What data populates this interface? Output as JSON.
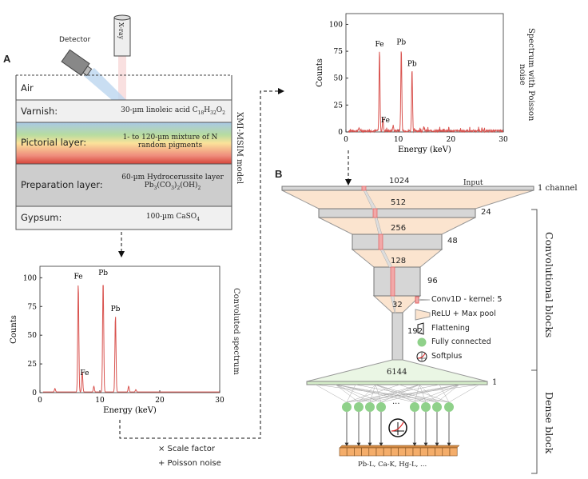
{
  "panel_a": {
    "label": "A",
    "detector_label": "Detector",
    "xray_label": "X-ray",
    "model_label": "XMI-MSIM model",
    "layers": [
      {
        "name": "Air",
        "desc": ""
      },
      {
        "name": "Varnish:",
        "desc": "30-µm linoleic acid C18H32O2"
      },
      {
        "name": "Pictorial layer:",
        "desc": "1- to 120-µm mixture of N random pigments"
      },
      {
        "name": "Preparation layer:",
        "desc": "60-µm Hydrocerussite layer Pb3(CO3)2(OH)2"
      },
      {
        "name": "Gypsum:",
        "desc": "100-µm CaSO4"
      }
    ],
    "convoluted_label": "Convoluted spectrum",
    "scale_factor": "× Scale factor",
    "poisson_noise": "+ Poisson noise",
    "noisy_label": "Spectrum with Poisson noise"
  },
  "chart_data": [
    {
      "type": "line",
      "title": "Convoluted spectrum",
      "xlabel": "Energy (keV)",
      "ylabel": "Counts",
      "xlim": [
        0,
        30
      ],
      "ylim": [
        0,
        110
      ],
      "xticks": [
        "0",
        "10",
        "20",
        "30"
      ],
      "yticks": [
        "0",
        "25",
        "50",
        "75",
        "100"
      ],
      "peaks": [
        {
          "energy": 2.5,
          "counts": 3,
          "label": ""
        },
        {
          "energy": 6.4,
          "counts": 95,
          "label": "Fe"
        },
        {
          "energy": 7.06,
          "counts": 18,
          "label": "Fe"
        },
        {
          "energy": 9.0,
          "counts": 5,
          "label": ""
        },
        {
          "energy": 10.55,
          "counts": 98,
          "label": "Pb"
        },
        {
          "energy": 12.6,
          "counts": 67,
          "label": "Pb"
        },
        {
          "energy": 14.8,
          "counts": 5,
          "label": ""
        },
        {
          "energy": 16.0,
          "counts": 2,
          "label": ""
        }
      ],
      "color": "#d9534f"
    },
    {
      "type": "line",
      "title": "Spectrum with Poisson noise",
      "xlabel": "Energy (keV)",
      "ylabel": "Counts",
      "xlim": [
        0,
        30
      ],
      "ylim": [
        0,
        110
      ],
      "xticks": [
        "0",
        "10",
        "20",
        "30"
      ],
      "yticks": [
        "0",
        "25",
        "50",
        "75",
        "100"
      ],
      "peaks": [
        {
          "energy": 2.5,
          "counts": 3,
          "label": ""
        },
        {
          "energy": 6.4,
          "counts": 75,
          "label": "Fe"
        },
        {
          "energy": 7.06,
          "counts": 12,
          "label": "Fe"
        },
        {
          "energy": 9.0,
          "counts": 5,
          "label": ""
        },
        {
          "energy": 10.55,
          "counts": 77,
          "label": "Pb"
        },
        {
          "energy": 12.6,
          "counts": 57,
          "label": "Pb"
        },
        {
          "energy": 14.8,
          "counts": 4,
          "label": ""
        }
      ],
      "color": "#d9534f"
    }
  ],
  "panel_b": {
    "label": "B",
    "input_label": "Input",
    "input_size": "1024",
    "input_channels": "1 channel",
    "conv_layers": [
      {
        "size": "512",
        "channels": "24"
      },
      {
        "size": "256",
        "channels": "48"
      },
      {
        "size": "128",
        "channels": "96"
      }
    ],
    "pool_size": "32",
    "flatten_size": "192",
    "dense_size": "6144",
    "dense_channels": "1",
    "ellipsis": "···",
    "output_label": "Pb-L, Ca-K, Hg-L, ...",
    "conv_blocks_label": "Convolutional blocks",
    "dense_block_label": "Dense block",
    "legend": {
      "conv": "Conv1D - kernel: 5",
      "relu": "ReLU + Max pool",
      "flatten": "Flattening",
      "fc": "Fully connected",
      "softplus": "Softplus"
    }
  }
}
